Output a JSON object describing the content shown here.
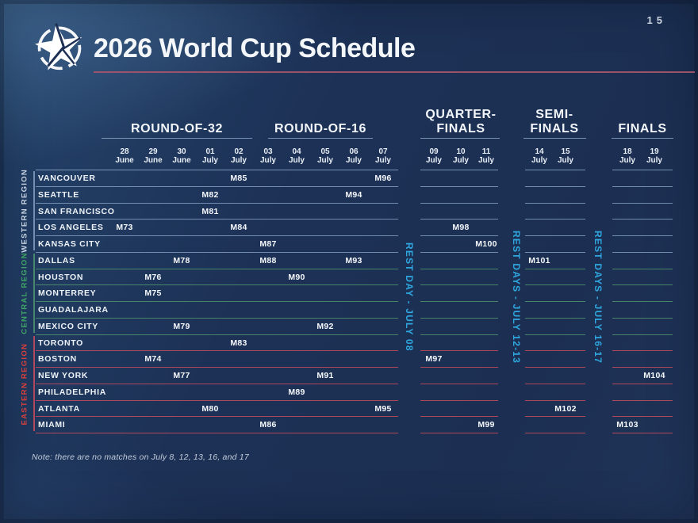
{
  "header": {
    "title": "2026 World Cup Schedule",
    "page_number": "15"
  },
  "colors": {
    "background": "#1d3054",
    "title_rule": "#a2556a",
    "rest_day_text": "#2fa8e0",
    "header_line": "rgba(168,198,228,0.65)",
    "western_region": "#c6d2e0",
    "central_region": "#3fa465",
    "eastern_region": "#d6403c"
  },
  "chart_data": {
    "type": "table",
    "title": "2026 World Cup Schedule",
    "note": "Note: there are no matches on July 8, 12, 13, 16, and 17",
    "stages": [
      {
        "id": "r32",
        "label_lines": [
          "ROUND-OF-32"
        ],
        "dates": [
          [
            "28",
            "June"
          ],
          [
            "29",
            "June"
          ],
          [
            "30",
            "June"
          ],
          [
            "01",
            "July"
          ],
          [
            "02",
            "July"
          ]
        ]
      },
      {
        "id": "r16",
        "label_lines": [
          "ROUND-OF-16"
        ],
        "dates": [
          [
            "03",
            "July"
          ],
          [
            "04",
            "July"
          ],
          [
            "05",
            "July"
          ],
          [
            "06",
            "July"
          ],
          [
            "07",
            "July"
          ]
        ]
      },
      {
        "id": "qf",
        "label_lines": [
          "QUARTER-",
          "FINALS"
        ],
        "dates": [
          [
            "09",
            "July"
          ],
          [
            "10",
            "July"
          ],
          [
            "11",
            "July"
          ]
        ]
      },
      {
        "id": "sf",
        "label_lines": [
          "SEMI-",
          "FINALS"
        ],
        "dates": [
          [
            "14",
            "July"
          ],
          [
            "15",
            "July"
          ]
        ]
      },
      {
        "id": "finals",
        "label_lines": [
          "FINALS"
        ],
        "dates": [
          [
            "18",
            "July"
          ],
          [
            "19",
            "July"
          ]
        ]
      }
    ],
    "rest_days": [
      {
        "id": "rest-jul08",
        "text": "REST DAY - JULY 08"
      },
      {
        "id": "rest-jul12-13",
        "text": "REST DAYS - JULY 12-13"
      },
      {
        "id": "rest-jul16-17",
        "text": "REST DAYS - JULY 16-17"
      }
    ],
    "regions": [
      {
        "name": "WESTERN REGION",
        "color": "#c6d2e0",
        "line_color": "rgba(150,180,212,0.70)",
        "row_start": 0,
        "row_end": 4
      },
      {
        "name": "CENTRAL REGION",
        "color": "#3fa465",
        "line_color": "rgba(85,162,112,0.75)",
        "row_start": 5,
        "row_end": 9
      },
      {
        "name": "EASTERN REGION",
        "color": "#d6403c",
        "line_color": "rgba(212,78,94,0.80)",
        "row_start": 10,
        "row_end": 15
      }
    ],
    "rows": [
      {
        "city": "VANCOUVER",
        "region": 0,
        "matches": [
          {
            "code": "M85",
            "stage": "r32",
            "col": 4
          },
          {
            "code": "M96",
            "stage": "r16",
            "col": 4
          }
        ]
      },
      {
        "city": "SEATTLE",
        "region": 0,
        "matches": [
          {
            "code": "M82",
            "stage": "r32",
            "col": 3
          },
          {
            "code": "M94",
            "stage": "r16",
            "col": 3
          }
        ]
      },
      {
        "city": "SAN FRANCISCO",
        "region": 0,
        "matches": [
          {
            "code": "M81",
            "stage": "r32",
            "col": 3
          }
        ]
      },
      {
        "city": "LOS ANGELES",
        "region": 0,
        "matches": [
          {
            "code": "M73",
            "stage": "r32",
            "col": 0
          },
          {
            "code": "M84",
            "stage": "r32",
            "col": 4
          },
          {
            "code": "M98",
            "stage": "qf",
            "col": 1
          }
        ]
      },
      {
        "city": "KANSAS CITY",
        "region": 0,
        "matches": [
          {
            "code": "M87",
            "stage": "r16",
            "col": 0
          },
          {
            "code": "M100",
            "stage": "qf",
            "col": 2
          }
        ]
      },
      {
        "city": "DALLAS",
        "region": 1,
        "matches": [
          {
            "code": "M78",
            "stage": "r32",
            "col": 2
          },
          {
            "code": "M88",
            "stage": "r16",
            "col": 0
          },
          {
            "code": "M93",
            "stage": "r16",
            "col": 3
          },
          {
            "code": "M101",
            "stage": "sf",
            "col": 0
          }
        ]
      },
      {
        "city": "HOUSTON",
        "region": 1,
        "matches": [
          {
            "code": "M76",
            "stage": "r32",
            "col": 1
          },
          {
            "code": "M90",
            "stage": "r16",
            "col": 1
          }
        ]
      },
      {
        "city": "MONTERREY",
        "region": 1,
        "matches": [
          {
            "code": "M75",
            "stage": "r32",
            "col": 1
          }
        ]
      },
      {
        "city": "GUADALAJARA",
        "region": 1,
        "matches": []
      },
      {
        "city": "MEXICO CITY",
        "region": 1,
        "matches": [
          {
            "code": "M79",
            "stage": "r32",
            "col": 2
          },
          {
            "code": "M92",
            "stage": "r16",
            "col": 2
          }
        ]
      },
      {
        "city": "TORONTO",
        "region": 2,
        "matches": [
          {
            "code": "M83",
            "stage": "r32",
            "col": 4
          }
        ]
      },
      {
        "city": "BOSTON",
        "region": 2,
        "matches": [
          {
            "code": "M74",
            "stage": "r32",
            "col": 1
          },
          {
            "code": "M97",
            "stage": "qf",
            "col": 0
          }
        ]
      },
      {
        "city": "NEW YORK",
        "region": 2,
        "matches": [
          {
            "code": "M77",
            "stage": "r32",
            "col": 2
          },
          {
            "code": "M91",
            "stage": "r16",
            "col": 2
          },
          {
            "code": "M104",
            "stage": "finals",
            "col": 1
          }
        ]
      },
      {
        "city": "PHILADELPHIA",
        "region": 2,
        "matches": [
          {
            "code": "M89",
            "stage": "r16",
            "col": 1
          }
        ]
      },
      {
        "city": "ATLANTA",
        "region": 2,
        "matches": [
          {
            "code": "M80",
            "stage": "r32",
            "col": 3
          },
          {
            "code": "M95",
            "stage": "r16",
            "col": 4
          },
          {
            "code": "M102",
            "stage": "sf",
            "col": 1
          }
        ]
      },
      {
        "city": "MIAMI",
        "region": 2,
        "matches": [
          {
            "code": "M86",
            "stage": "r16",
            "col": 0
          },
          {
            "code": "M99",
            "stage": "qf",
            "col": 2
          },
          {
            "code": "M103",
            "stage": "finals",
            "col": 0
          }
        ]
      }
    ]
  }
}
